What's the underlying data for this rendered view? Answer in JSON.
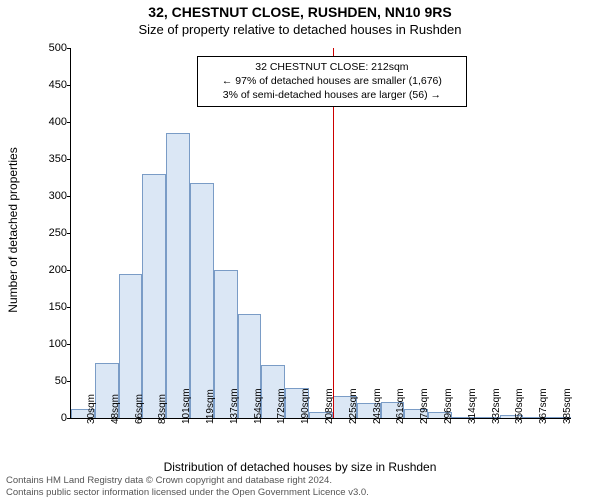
{
  "header": {
    "address": "32, CHESTNUT CLOSE, RUSHDEN, NN10 9RS",
    "title": "Size of property relative to detached houses in Rushden"
  },
  "chart": {
    "type": "histogram",
    "background_color": "#ffffff",
    "ylabel": "Number of detached properties",
    "xlabel": "Distribution of detached houses by size in Rushden",
    "label_fontsize": 12,
    "tick_fontsize": 11,
    "ylim": [
      0,
      500
    ],
    "ytick_step": 50,
    "xticks": [
      "30sqm",
      "48sqm",
      "66sqm",
      "83sqm",
      "101sqm",
      "119sqm",
      "137sqm",
      "154sqm",
      "172sqm",
      "190sqm",
      "208sqm",
      "225sqm",
      "243sqm",
      "261sqm",
      "279sqm",
      "296sqm",
      "314sqm",
      "332sqm",
      "350sqm",
      "367sqm",
      "385sqm"
    ],
    "bars": {
      "values": [
        12,
        75,
        195,
        330,
        385,
        318,
        200,
        140,
        72,
        40,
        8,
        30,
        20,
        22,
        12,
        8,
        2,
        0,
        4,
        0,
        0
      ],
      "fill_color": "#dbe7f5",
      "stroke_color": "#7a9cc6",
      "bar_width_ratio": 1.0
    },
    "marker": {
      "x_index_after": 10,
      "color": "#cc0000"
    },
    "annotation": {
      "line1": "32 CHESTNUT CLOSE: 212sqm",
      "line2": "← 97% of detached houses are smaller (1,676)",
      "line3": "3% of semi-detached houses are larger (56) →",
      "border_color": "#000000",
      "bg_color": "#ffffff",
      "fontsize": 10.5
    }
  },
  "footer": {
    "line1": "Contains HM Land Registry data © Crown copyright and database right 2024.",
    "line2": "Contains public sector information licensed under the Open Government Licence v3.0.",
    "color": "#555555",
    "fontsize": 9.5
  }
}
